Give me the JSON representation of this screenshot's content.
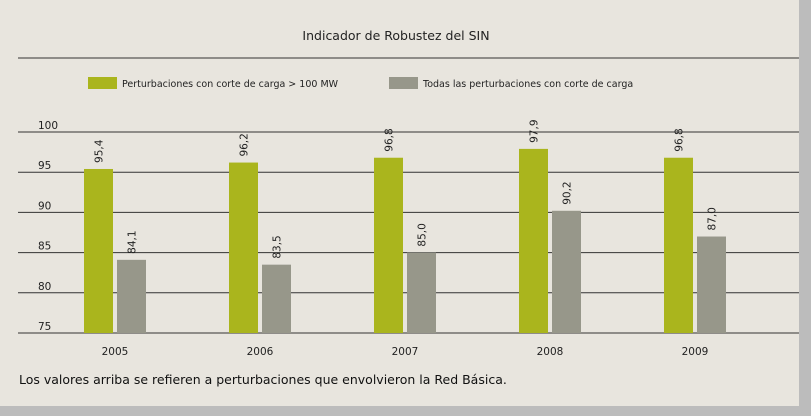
{
  "caption": "Los valores arriba se refieren a perturbaciones que envolvieron la Red Básica.",
  "colors": {
    "series1": "#aab51d",
    "series2": "#97978a",
    "grid": "#333333",
    "background": "#e8e5de"
  },
  "chart_data": {
    "type": "bar",
    "title": "Indicador de Robustez del SIN",
    "categories": [
      "2005",
      "2006",
      "2007",
      "2008",
      "2009"
    ],
    "series": [
      {
        "name": "Perturbaciones con corte de carga > 100 MW",
        "values": [
          95.4,
          96.2,
          96.8,
          97.9,
          96.8
        ],
        "labels": [
          "95,4",
          "96,2",
          "96,8",
          "97,9",
          "96,8"
        ]
      },
      {
        "name": "Todas las perturbaciones con corte de carga",
        "values": [
          84.1,
          83.5,
          85.0,
          90.2,
          87.0
        ],
        "labels": [
          "84,1",
          "83,5",
          "85,0",
          "90,2",
          "87,0"
        ]
      }
    ],
    "yticks": [
      75,
      80,
      85,
      90,
      95,
      100
    ],
    "ylim": [
      75,
      100
    ],
    "grid": true,
    "legend_position": "top-left"
  }
}
